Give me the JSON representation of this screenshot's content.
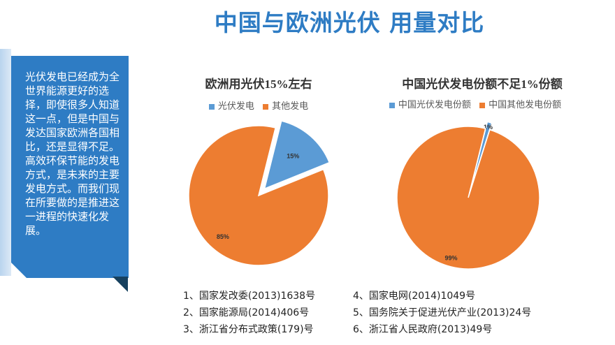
{
  "page": {
    "title": "中国与欧洲光伏  用量对比",
    "sidebar_text": "        光伏发电已经成为全世界能源更好的选择，即使很多人知道这一点，但是中国与发达国家欧洲各国相比，还是显得不足。\n        高效环保节能的发电方式，是未来的主要发电方式。而我们现在所要做的是推进这一进程的快速化发展。"
  },
  "colors": {
    "title_blue": "#2e7cc4",
    "sidebar_blue": "#2e7cc4",
    "slice_blue": "#5b9bd5",
    "slice_orange": "#ed7d31"
  },
  "chart_data": [
    {
      "type": "pie",
      "title": "欧洲用光伏15%左右",
      "legend_position": "top",
      "slices": [
        {
          "label": "光伏发电",
          "value": 15,
          "data_label": "15%",
          "color": "#5b9bd5",
          "exploded": true
        },
        {
          "label": "其他发电",
          "value": 85,
          "data_label": "85%",
          "color": "#ed7d31",
          "exploded": false
        }
      ]
    },
    {
      "type": "pie",
      "title": "中国光伏发电份额不足1%份额",
      "legend_position": "top",
      "slices": [
        {
          "label": "中国光伏发电份额",
          "value": 1,
          "data_label": "1%",
          "color": "#5b9bd5",
          "exploded": true
        },
        {
          "label": "中国其他发电份额",
          "value": 99,
          "data_label": "99%",
          "color": "#ed7d31",
          "exploded": false
        }
      ]
    }
  ],
  "references": {
    "left": [
      "1、国家发改委(2013)1638号",
      "2、国家能源局(2014)406号",
      "3、浙江省分布式政策(179)号"
    ],
    "right": [
      "4、国家电网(2014)1049号",
      "5、国务院关于促进光伏产业(2013)24号",
      "6、浙江省人民政府(2013)49号"
    ]
  }
}
